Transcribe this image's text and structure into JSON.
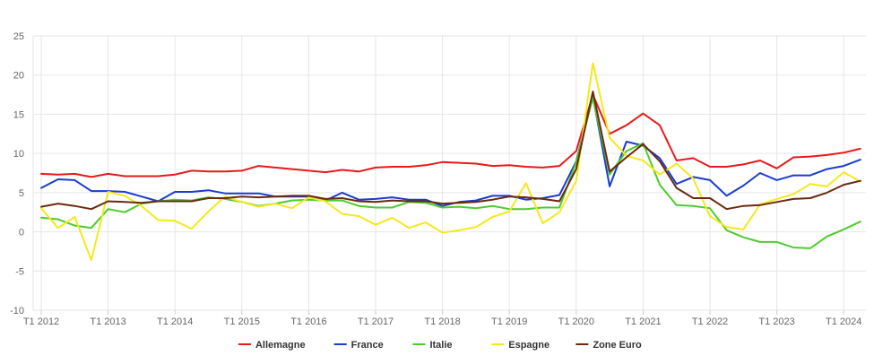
{
  "chart_data": {
    "type": "line",
    "title": "",
    "xlabel": "",
    "ylabel": "",
    "ylim": [
      -10,
      25
    ],
    "yticks": [
      -10,
      -5,
      0,
      5,
      10,
      15,
      20,
      25
    ],
    "grid": true,
    "legend_position": "bottom",
    "x_tick_labels": [
      "T1 2012",
      "T1 2013",
      "T1 2014",
      "T1 2015",
      "T1 2016",
      "T1 2017",
      "T1 2018",
      "T1 2019",
      "T1 2020",
      "T1 2021",
      "T1 2022",
      "T1 2023",
      "T1 2024"
    ],
    "x_start": "T1 2012",
    "series": [
      {
        "name": "Allemagne",
        "color": "#e8191a",
        "values": [
          7.4,
          7.3,
          7.4,
          7.0,
          7.4,
          7.1,
          7.1,
          7.1,
          7.3,
          7.8,
          7.7,
          7.7,
          7.8,
          8.4,
          8.2,
          8.0,
          7.8,
          7.6,
          7.9,
          7.7,
          8.2,
          8.3,
          8.3,
          8.5,
          8.9,
          8.8,
          8.7,
          8.4,
          8.5,
          8.3,
          8.2,
          8.4,
          10.3,
          17.5,
          12.5,
          13.6,
          15.1,
          13.6,
          9.1,
          9.4,
          8.3,
          8.3,
          8.6,
          9.1,
          8.1,
          9.5,
          9.6,
          9.8,
          10.1,
          10.6
        ]
      },
      {
        "name": "France",
        "color": "#1a3ccf",
        "values": [
          5.6,
          6.7,
          6.6,
          5.2,
          5.2,
          5.1,
          4.5,
          3.9,
          5.1,
          5.1,
          5.3,
          4.9,
          4.9,
          4.9,
          4.5,
          4.5,
          4.5,
          4.0,
          5.0,
          4.1,
          4.2,
          4.4,
          4.1,
          4.1,
          3.3,
          3.8,
          4.0,
          4.6,
          4.6,
          4.1,
          4.3,
          4.7,
          9.0,
          17.3,
          5.8,
          11.5,
          11.0,
          9.4,
          6.1,
          7.0,
          6.6,
          4.6,
          5.9,
          7.5,
          6.6,
          7.2,
          7.2,
          8.0,
          8.4,
          9.2
        ]
      },
      {
        "name": "Italie",
        "color": "#4ccc2e",
        "values": [
          1.8,
          1.6,
          0.8,
          0.5,
          2.9,
          2.5,
          3.6,
          3.9,
          4.1,
          4.0,
          4.4,
          4.2,
          3.8,
          3.3,
          3.6,
          4.0,
          4.1,
          4.0,
          4.0,
          3.3,
          3.1,
          3.1,
          3.8,
          3.7,
          3.1,
          3.2,
          3.0,
          3.3,
          2.9,
          2.9,
          3.1,
          3.1,
          8.9,
          17.1,
          7.3,
          10.3,
          11.3,
          6.0,
          3.4,
          3.3,
          3.0,
          0.2,
          -0.7,
          -1.3,
          -1.3,
          -2.0,
          -2.1,
          -0.6,
          0.3,
          1.3
        ]
      },
      {
        "name": "Espagne",
        "color": "#f5e81c",
        "values": [
          3.0,
          0.5,
          1.9,
          -3.6,
          5.1,
          4.6,
          3.3,
          1.5,
          1.4,
          0.4,
          2.6,
          4.5,
          3.8,
          3.2,
          3.6,
          3.0,
          4.4,
          3.9,
          2.3,
          2.0,
          0.9,
          1.8,
          0.5,
          1.2,
          -0.1,
          0.2,
          0.6,
          1.9,
          2.6,
          6.2,
          1.1,
          2.5,
          6.5,
          21.5,
          12.0,
          9.7,
          9.1,
          7.3,
          8.7,
          6.8,
          2.0,
          0.6,
          0.3,
          3.5,
          4.2,
          4.8,
          6.1,
          5.8,
          7.6,
          6.4
        ]
      },
      {
        "name": "Zone Euro",
        "color": "#6b2a0e",
        "values": [
          3.2,
          3.6,
          3.3,
          2.9,
          3.9,
          3.8,
          3.7,
          3.9,
          3.9,
          3.9,
          4.3,
          4.3,
          4.5,
          4.4,
          4.5,
          4.6,
          4.6,
          4.2,
          4.3,
          3.9,
          3.8,
          4.0,
          3.9,
          3.9,
          3.6,
          3.7,
          3.8,
          4.1,
          4.5,
          4.4,
          4.2,
          3.9,
          8.0,
          17.9,
          7.7,
          9.5,
          11.2,
          9.0,
          5.6,
          4.3,
          4.3,
          2.9,
          3.3,
          3.4,
          3.8,
          4.2,
          4.3,
          5.0,
          6.0,
          6.5
        ]
      }
    ]
  }
}
